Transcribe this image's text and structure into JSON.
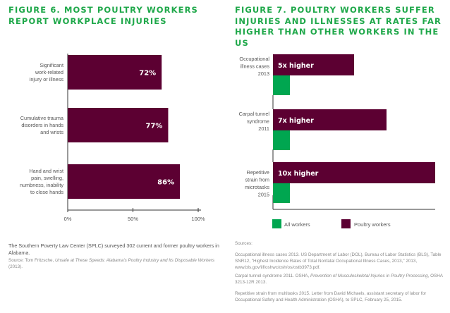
{
  "colors": {
    "poultry": "#5c0032",
    "all": "#00a650",
    "title": "#1fa84a"
  },
  "chart_data": [
    {
      "type": "bar",
      "orientation": "horizontal",
      "title": "FIGURE 6. MOST POULTRY WORKERS REPORT WORKPLACE INJURIES",
      "categories": [
        [
          "Significant",
          "work-related",
          "injury or illness"
        ],
        [
          "Cumulative trauma",
          "disorders in hands",
          "and wrists"
        ],
        [
          "Hand and wrist",
          "pain, swelling,",
          "numbness, inability",
          "to close hands"
        ]
      ],
      "values": [
        72,
        77,
        86
      ],
      "data_labels": [
        "72%",
        "77%",
        "86%"
      ],
      "xlim": [
        0,
        100
      ],
      "xticks": [
        "0%",
        "50%",
        "100%"
      ],
      "grid": false
    },
    {
      "type": "bar",
      "orientation": "horizontal",
      "title": "FIGURE 7. POULTRY WORKERS SUFFER INJURIES AND ILLNESSES AT RATES FAR HIGHER THAN OTHER WORKERS IN THE US",
      "categories": [
        [
          "Occupational",
          "illness cases",
          "2013"
        ],
        [
          "Carpal tunnel",
          "syndrome",
          "2011"
        ],
        [
          "Repetitive",
          "strain from",
          "microtasks",
          "2015"
        ]
      ],
      "series": [
        {
          "name": "Poultry workers",
          "values": [
            5,
            7,
            10
          ],
          "data_labels": [
            "5x higher",
            "7x higher",
            "10x higher"
          ]
        },
        {
          "name": "All workers",
          "values": [
            1,
            1,
            1
          ]
        }
      ],
      "legend": "bottom",
      "legend_entries": [
        "All workers",
        "Poultry workers"
      ],
      "grid": false
    }
  ],
  "notes": {
    "fig6_text": "The Southern Poverty Law Center (SPLC) surveyed 302 current and former poultry workers in Alabama.",
    "fig6_source_prefix": "Source: Tom Fritzsche, ",
    "fig6_source_title": "Unsafe at These Speeds: Alabama's Poultry Industry and Its Disposable Workers",
    "fig6_source_suffix": " (2013).",
    "sources_heading": "Sources:",
    "source1": "Occupational illness cases 2013. US Department of Labor (DOL), Bureau of Labor Statistics (BLS), Table SNR12, \"Highest Incidence Rates of Total Nonfatal Occupational Illness Cases, 2013,\" 2013, www.bls.gov/iif/oshwc/osh/os/ostb3973.pdf.",
    "source2_prefix": "Carpal tunnel syndrome 2011. OSHA, ",
    "source2_title": "Prevention of Musculoskeletal Injuries in Poultry Processing",
    "source2_suffix": ", OSHA 3213-12R 2013.",
    "source3": "Repetitive strain from multitasks 2015. Letter from David Michaels, assistant secretary of labor for Occupational Safety and Health Administration (OSHA), to SPLC, February 25, 2015."
  }
}
